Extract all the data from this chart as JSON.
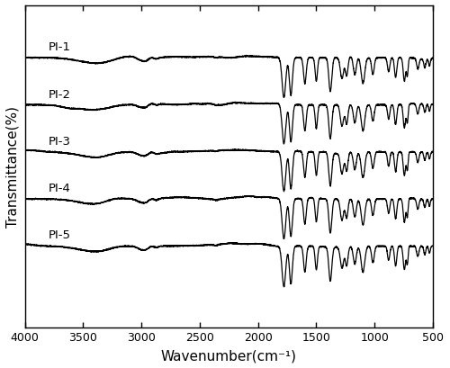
{
  "xlabel": "Wavenumber(cm⁻¹)",
  "ylabel": "Transmittance(%)",
  "xlim": [
    4000,
    500
  ],
  "x_ticks": [
    4000,
    3500,
    3000,
    2500,
    2000,
    1500,
    1000,
    500
  ],
  "spectra_labels": [
    "PI-1",
    "PI-2",
    "PI-3",
    "PI-4",
    "PI-5"
  ],
  "line_color": "#000000",
  "background_color": "#ffffff",
  "linewidth": 0.9,
  "figsize": [
    5.0,
    4.1
  ],
  "dpi": 100
}
